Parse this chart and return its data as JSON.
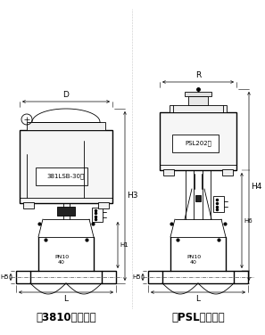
{
  "left_label": "381LSB-30型",
  "right_label": "PSL202型",
  "bottom_left": "配3810执行机构",
  "bottom_right": "配PSL执行机构",
  "dim_D": "D",
  "dim_R": "R",
  "dim_H3": "H3",
  "dim_H4": "H4",
  "dim_H1": "H1",
  "dim_H6": "H6",
  "dim_H5": "H5",
  "dim_L": "L",
  "pn_text": "PN10",
  "num_40": "40",
  "lc": "#000000",
  "bg": "#ffffff"
}
